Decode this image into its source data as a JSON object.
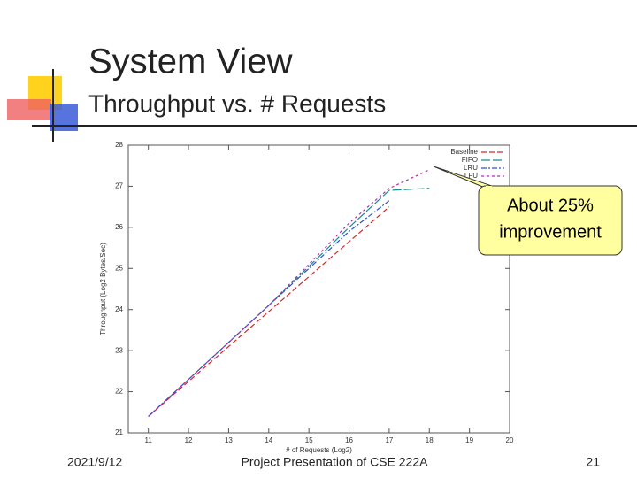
{
  "slide": {
    "title": "System View",
    "subtitle": "Throughput vs. # Requests",
    "callout": [
      "About 25%",
      "improvement"
    ],
    "footer": {
      "date": "2021/9/12",
      "center": "Project Presentation of CSE 222A",
      "page": "21"
    }
  },
  "chart_data": {
    "type": "line",
    "x_label": "# of Requests (Log2)",
    "y_label": "Throughput (Log2 Bytes/Sec)",
    "x": [
      11,
      12,
      13,
      14,
      15,
      16,
      17,
      18
    ],
    "series": [
      {
        "name": "Baseline",
        "color": "#d02a2a",
        "dash": "6 3",
        "values": [
          21.4,
          22.25,
          23.1,
          23.95,
          24.8,
          25.65,
          26.5,
          null
        ]
      },
      {
        "name": "FIFO",
        "color": "#1a8c8c",
        "dash": "10 3",
        "values": [
          21.4,
          22.3,
          23.2,
          24.1,
          25.05,
          26.0,
          26.9,
          26.95
        ]
      },
      {
        "name": "LRU",
        "color": "#3050d0",
        "dash": "6 2 2 2",
        "values": [
          21.4,
          22.3,
          23.2,
          24.1,
          25.0,
          25.9,
          26.65,
          null
        ]
      },
      {
        "name": "LFU",
        "color": "#b030b0",
        "dash": "3 3",
        "values": [
          21.4,
          22.3,
          23.2,
          24.1,
          25.1,
          26.1,
          26.95,
          27.4
        ]
      }
    ],
    "xlim": [
      10.5,
      20
    ],
    "xticks": [
      11,
      12,
      13,
      14,
      15,
      16,
      17,
      18,
      19,
      20
    ],
    "ylim": [
      21,
      28
    ],
    "yticks": [
      21,
      22,
      23,
      24,
      25,
      26,
      27,
      28
    ],
    "grid": false,
    "legend": "top-right"
  }
}
